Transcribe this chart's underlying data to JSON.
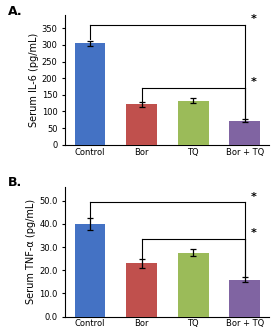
{
  "panel_A": {
    "categories": [
      "Control",
      "Bor",
      "TQ",
      "Bor + TQ"
    ],
    "values": [
      305,
      122,
      133,
      72
    ],
    "errors": [
      8,
      8,
      7,
      5
    ],
    "bar_colors": [
      "#4472C4",
      "#C0504D",
      "#9BBB59",
      "#8064A2"
    ],
    "ylabel": "Serum IL-6 (pg/mL)",
    "ylim": [
      0,
      390
    ],
    "yticks": [
      0,
      50,
      100,
      150,
      200,
      250,
      300,
      350
    ],
    "label": "A."
  },
  "panel_B": {
    "categories": [
      "Control",
      "Bor",
      "TQ",
      "Bor + TQ"
    ],
    "values": [
      40.0,
      23.0,
      27.5,
      16.0
    ],
    "errors": [
      2.5,
      2.0,
      1.5,
      1.0
    ],
    "bar_colors": [
      "#4472C4",
      "#C0504D",
      "#9BBB59",
      "#8064A2"
    ],
    "ylabel": "Serum TNF-α (pg/mL)",
    "ylim": [
      0,
      56
    ],
    "yticks": [
      0.0,
      10.0,
      20.0,
      30.0,
      40.0,
      50.0
    ],
    "yticklabels": [
      "0.0",
      "10.0",
      "20.0",
      "30.0",
      "40.0",
      "50.0"
    ],
    "label": "B."
  },
  "bar_width": 0.6,
  "background_color": "#ffffff",
  "tick_fontsize": 6.0,
  "label_fontsize": 7.0,
  "panel_label_fontsize": 9
}
